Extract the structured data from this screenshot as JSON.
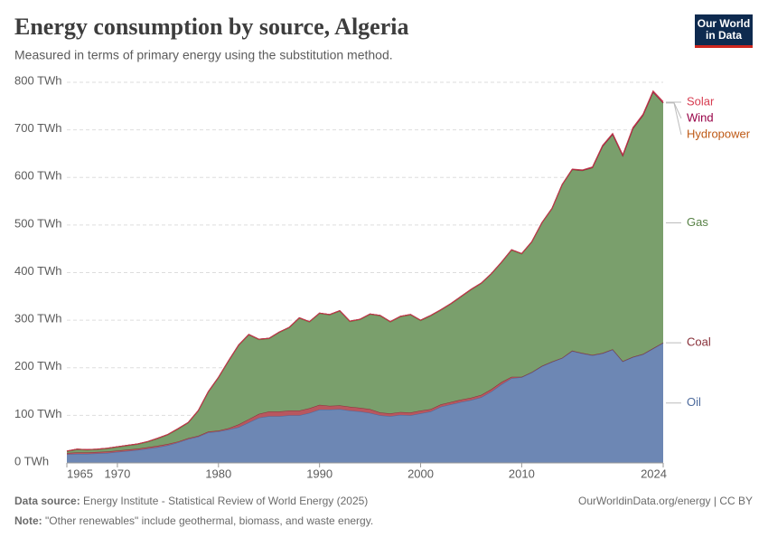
{
  "chart_data": {
    "type": "area",
    "stacked": true,
    "title": "Energy consumption by source, Algeria",
    "subtitle": "Measured in terms of primary energy using the substitution method.",
    "logo": [
      "Our World",
      "in Data"
    ],
    "source_label": "Data source:",
    "source": "Energy Institute - Statistical Review of World Energy (2025)",
    "credit": "OurWorldinData.org/energy | CC BY",
    "note_label": "Note:",
    "note": "\"Other renewables\" include geothermal, biomass, and waste energy.",
    "xlim": [
      1965,
      2024
    ],
    "xticks": [
      1965,
      1970,
      1980,
      1990,
      2000,
      2010,
      2024
    ],
    "ylim": [
      0,
      800
    ],
    "yticks": [
      {
        "value": 0,
        "label": "0 TWh"
      },
      {
        "value": 100,
        "label": "100 TWh"
      },
      {
        "value": 200,
        "label": "200 TWh"
      },
      {
        "value": 300,
        "label": "300 TWh"
      },
      {
        "value": 400,
        "label": "400 TWh"
      },
      {
        "value": 500,
        "label": "500 TWh"
      },
      {
        "value": 600,
        "label": "600 TWh"
      },
      {
        "value": 700,
        "label": "700 TWh"
      },
      {
        "value": 800,
        "label": "800 TWh"
      }
    ],
    "grid": true,
    "x": [
      1965,
      1966,
      1967,
      1968,
      1969,
      1970,
      1971,
      1972,
      1973,
      1974,
      1975,
      1976,
      1977,
      1978,
      1979,
      1980,
      1981,
      1982,
      1983,
      1984,
      1985,
      1986,
      1987,
      1988,
      1989,
      1990,
      1991,
      1992,
      1993,
      1994,
      1995,
      1996,
      1997,
      1998,
      1999,
      2000,
      2001,
      2002,
      2003,
      2004,
      2005,
      2006,
      2007,
      2008,
      2009,
      2010,
      2011,
      2012,
      2013,
      2014,
      2015,
      2016,
      2017,
      2018,
      2019,
      2020,
      2021,
      2022,
      2023,
      2024
    ],
    "series": [
      {
        "name": "Oil",
        "color": "#6d87b4",
        "line": "#4c6a9c",
        "label_color": "#4c6a9c",
        "values": [
          18,
          19,
          19,
          20,
          21,
          23,
          25,
          27,
          30,
          33,
          37,
          43,
          50,
          55,
          64,
          66,
          70,
          75,
          85,
          95,
          98,
          98,
          100,
          100,
          105,
          112,
          112,
          113,
          110,
          108,
          105,
          100,
          98,
          101,
          100,
          104,
          108,
          118,
          123,
          128,
          132,
          138,
          150,
          165,
          178,
          180,
          190,
          203,
          212,
          220,
          235,
          230,
          226,
          230,
          238,
          213,
          222,
          228,
          240,
          252
        ]
      },
      {
        "name": "Coal",
        "color": "#b8575f",
        "line": "#883039",
        "label_color": "#883039",
        "values": [
          3,
          3,
          3,
          3,
          3,
          3,
          3,
          3,
          3,
          3,
          3,
          2,
          2,
          2,
          2,
          2,
          3,
          6,
          7,
          8,
          10,
          10,
          10,
          10,
          10,
          10,
          8,
          8,
          8,
          8,
          8,
          6,
          6,
          6,
          6,
          6,
          5,
          5,
          5,
          5,
          5,
          5,
          5,
          5,
          3,
          1,
          1,
          1,
          1,
          1,
          1,
          1,
          1,
          1,
          1,
          1,
          1,
          1,
          1,
          1
        ]
      },
      {
        "name": "Gas",
        "color": "#7a9f6c",
        "line": "#5b8746",
        "label_color": "#578145",
        "values": [
          3,
          6,
          5,
          5,
          6,
          7,
          8,
          9,
          11,
          15,
          19,
          26,
          32,
          52,
          83,
          111,
          141,
          166,
          177,
          156,
          153,
          166,
          174,
          194,
          181,
          192,
          191,
          198,
          179,
          185,
          199,
          203,
          192,
          200,
          205,
          189,
          196,
          198,
          206,
          216,
          227,
          234,
          242,
          251,
          266,
          258,
          273,
          300,
          321,
          363,
          380,
          383,
          393,
          434,
          451,
          431,
          479,
          501,
          538,
          503
        ]
      },
      {
        "name": "Hydropower",
        "color": "#c9773a",
        "line": "#be5915",
        "label_color": "#be5915",
        "values": [
          1,
          1,
          1,
          1,
          1,
          1,
          1,
          1,
          1,
          1,
          1,
          1,
          1,
          1,
          1,
          1,
          1,
          1,
          1,
          1,
          1,
          1,
          1,
          1,
          1,
          1,
          1,
          1,
          1,
          1,
          1,
          1,
          1,
          1,
          1,
          1,
          1,
          1,
          1,
          1,
          1,
          1,
          1,
          1,
          1,
          1,
          1,
          1,
          1,
          1,
          1,
          1,
          1,
          1,
          1,
          1,
          1,
          1,
          1,
          1
        ]
      },
      {
        "name": "Wind",
        "color": "#8b1a4f",
        "line": "#970046",
        "label_color": "#970046",
        "values": [
          0,
          0,
          0,
          0,
          0,
          0,
          0,
          0,
          0,
          0,
          0,
          0,
          0,
          0,
          0,
          0,
          0,
          0,
          0,
          0,
          0,
          0,
          0,
          0,
          0,
          0,
          0,
          0,
          0,
          0,
          0,
          0,
          0,
          0,
          0,
          0,
          0,
          0,
          0,
          0,
          0,
          0,
          0,
          0,
          0,
          0,
          0,
          0,
          0,
          0.02,
          0.02,
          0.02,
          0.02,
          0.02,
          0.02,
          0.02,
          0.02,
          0.02,
          0.02,
          0.02
        ]
      },
      {
        "name": "Solar",
        "color": "#d0586a",
        "line": "#c03a4c",
        "label_color": "#d73c50",
        "values": [
          0,
          0,
          0,
          0,
          0,
          0,
          0,
          0,
          0,
          0,
          0,
          0,
          0,
          0,
          0,
          0,
          0,
          0,
          0,
          0,
          0,
          0,
          0,
          0,
          0,
          0,
          0,
          0,
          0,
          0,
          0,
          0,
          0,
          0,
          0,
          0,
          0,
          0,
          0,
          0,
          0,
          0,
          0,
          0,
          0,
          0,
          0,
          0,
          0,
          0.1,
          0.5,
          0.8,
          1.2,
          1.5,
          1.6,
          1.7,
          1.8,
          1.8,
          2,
          2.5
        ]
      }
    ]
  }
}
